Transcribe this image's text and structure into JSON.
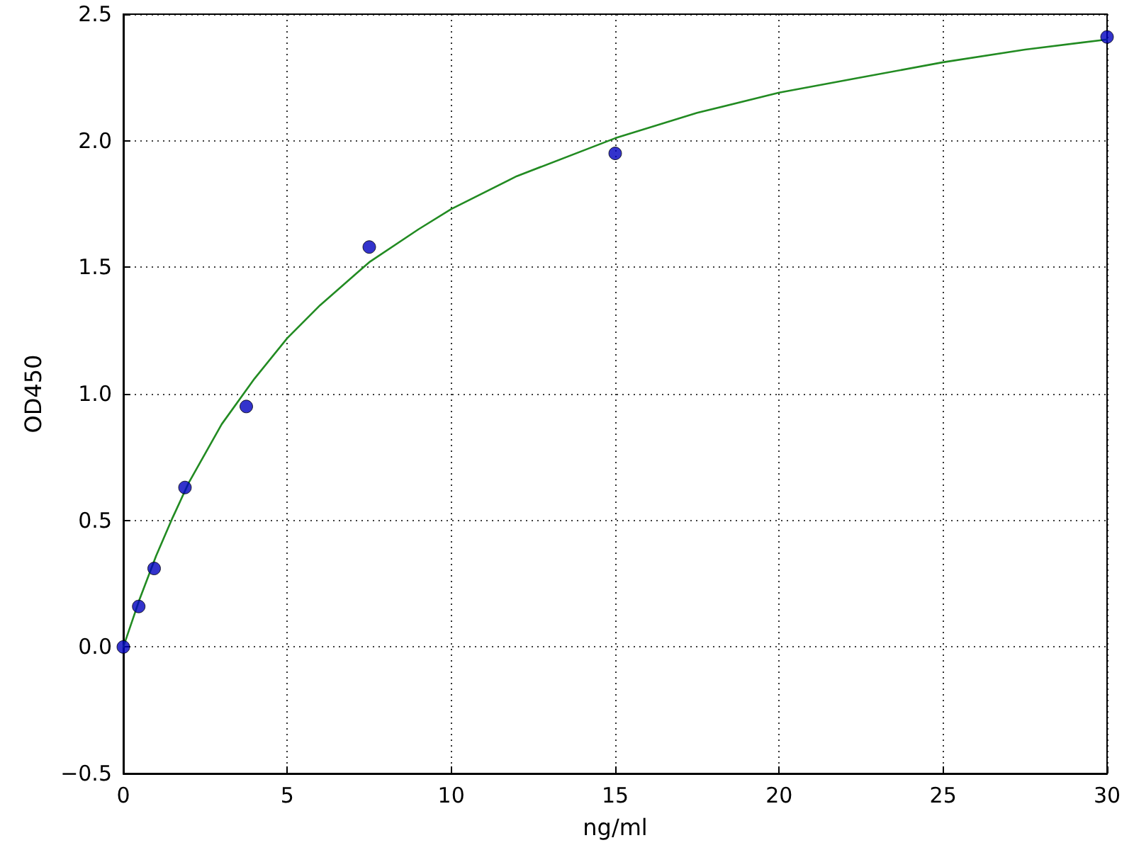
{
  "chart_data": {
    "type": "scatter",
    "xlabel": "ng/ml",
    "ylabel": "OD450",
    "xlim": [
      0,
      30
    ],
    "xticks": [
      0,
      5,
      10,
      15,
      20,
      25,
      30
    ],
    "ylim": [
      -0.5,
      2.5
    ],
    "yticks": [
      {
        "value": -0.5,
        "label": "−0.5"
      },
      {
        "value": 0,
        "label": "0.0"
      },
      {
        "value": 0.5,
        "label": "0.5"
      },
      {
        "value": 1,
        "label": "1.0"
      },
      {
        "value": 1.5,
        "label": "1.5"
      },
      {
        "value": 2,
        "label": "2.0"
      },
      {
        "value": 2.5,
        "label": "2.5"
      }
    ],
    "grid": true,
    "series": [
      {
        "type": "line",
        "color": "#228b22",
        "marker": "none",
        "line_style": "solid",
        "x": [
          0,
          0.5,
          1,
          1.5,
          2,
          3,
          4,
          5,
          6,
          7.5,
          9,
          10,
          12,
          15,
          17.5,
          20,
          22.5,
          25,
          27.5,
          30
        ],
        "values": [
          0,
          0.19,
          0.36,
          0.51,
          0.65,
          0.88,
          1.06,
          1.22,
          1.35,
          1.52,
          1.65,
          1.73,
          1.86,
          2.01,
          2.11,
          2.19,
          2.25,
          2.31,
          2.36,
          2.4
        ]
      },
      {
        "color": "#0000bf",
        "marker": "circle",
        "x": [
          0,
          0.47,
          0.94,
          1.88,
          3.75,
          7.5,
          15,
          30
        ],
        "values": [
          0,
          0.16,
          0.31,
          0.63,
          0.95,
          1.58,
          1.95,
          2.41
        ]
      }
    ]
  }
}
